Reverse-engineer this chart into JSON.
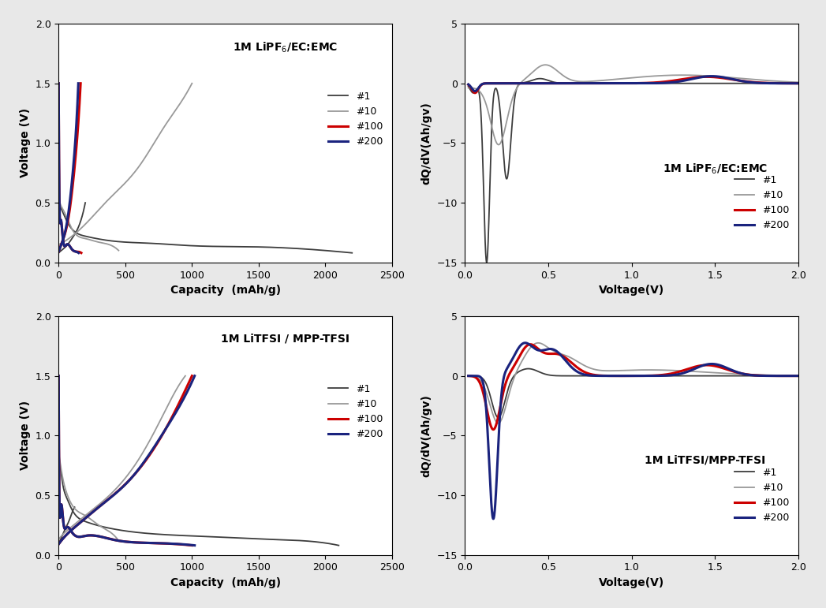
{
  "fig_width": 10.47,
  "fig_height": 7.71,
  "bg_color": "#e8e8e8",
  "plot_bg": "#ffffff",
  "top_left": {
    "title": "1M LiPF$_6$/EC:EMC",
    "xlabel": "Capacity  (mAh/g)",
    "ylabel": "Voltage (V)",
    "xlim": [
      0,
      2500
    ],
    "ylim": [
      0,
      2
    ],
    "xticks": [
      0,
      500,
      1000,
      1500,
      2000,
      2500
    ],
    "yticks": [
      0,
      0.5,
      1.0,
      1.5,
      2.0
    ]
  },
  "top_right": {
    "title": "1M LiPF$_6$/EC:EMC",
    "xlabel": "Voltage(V)",
    "ylabel": "dQ/dV(Ah/gv)",
    "xlim": [
      0,
      2
    ],
    "ylim": [
      -15,
      5
    ],
    "xticks": [
      0,
      0.5,
      1.0,
      1.5,
      2.0
    ],
    "yticks": [
      -15,
      -10,
      -5,
      0,
      5
    ]
  },
  "bot_left": {
    "title": "1M LiTFSI / MPP-TFSI",
    "xlabel": "Capacity  (mAh/g)",
    "ylabel": "Voltage (V)",
    "xlim": [
      0,
      2500
    ],
    "ylim": [
      0,
      2
    ],
    "xticks": [
      0,
      500,
      1000,
      1500,
      2000,
      2500
    ],
    "yticks": [
      0,
      0.5,
      1.0,
      1.5,
      2.0
    ]
  },
  "bot_right": {
    "title": "1M LiTFSI/MPP-TFSI",
    "xlabel": "Voltage(V)",
    "ylabel": "dQ/dV(Ah/gv)",
    "xlim": [
      0,
      2
    ],
    "ylim": [
      -15,
      5
    ],
    "xticks": [
      0,
      0.5,
      1.0,
      1.5,
      2.0
    ],
    "yticks": [
      -15,
      -10,
      -5,
      0,
      5
    ]
  },
  "colors": {
    "c1": "#3d3d3d",
    "c10": "#999999",
    "c100": "#cc0000",
    "c200": "#1a237e"
  },
  "legend_labels": [
    "#1",
    "#10",
    "#100",
    "#200"
  ]
}
